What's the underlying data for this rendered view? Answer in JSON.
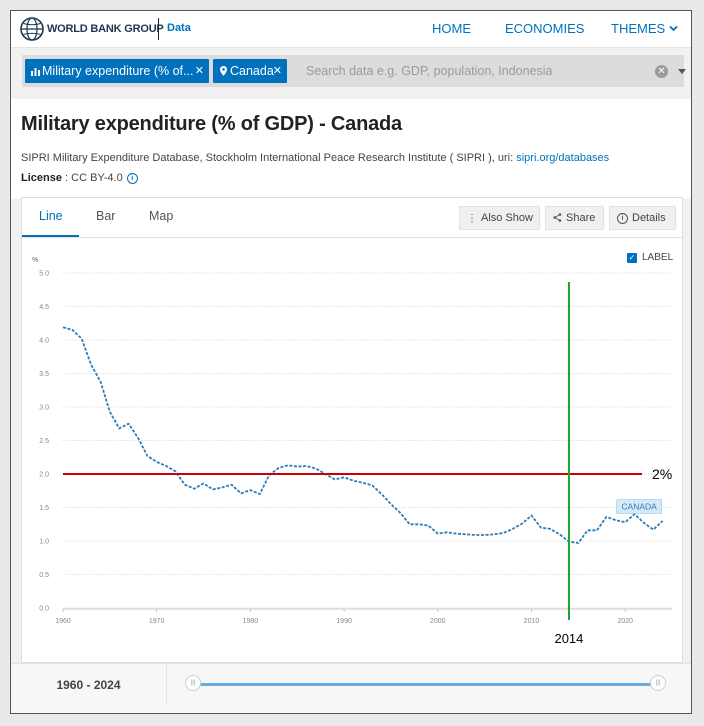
{
  "header": {
    "brand": "WORLD BANK GROUP",
    "section": "Data",
    "nav": [
      "HOME",
      "ECONOMIES",
      "THEMES"
    ]
  },
  "search": {
    "indicator_chip": "Military expenditure (% of...",
    "country_chip": "Canada",
    "placeholder": "Search data e.g. GDP, population, Indonesia"
  },
  "page": {
    "title": "Military expenditure (% of GDP) - Canada",
    "source_text": "SIPRI Military Expenditure Database, Stockholm International Peace Research Institute ( SIPRI ), uri: ",
    "source_link": "sipri.org/databases",
    "license_label": "License",
    "license_value": " : CC BY-4.0"
  },
  "tabs": [
    "Line",
    "Bar",
    "Map"
  ],
  "tools": [
    "Also Show",
    "Share",
    "Details"
  ],
  "label_toggle": "LABEL",
  "range": {
    "start": "1960",
    "end": "2024"
  },
  "colors": {
    "accent": "#0071bc",
    "series": "#2b7bb9",
    "threshold": "#cc0000",
    "marker": "#1aa32e"
  },
  "chart_data": {
    "type": "line",
    "title": "Military expenditure (% of GDP) - Canada",
    "ylabel": "%",
    "ylim": [
      0,
      5
    ],
    "yticks": [
      "0.0",
      "0.5",
      "1.0",
      "1.5",
      "2.0",
      "2.5",
      "3.0",
      "3.5",
      "4.0",
      "4.5",
      "5.0"
    ],
    "xlim": [
      1960,
      2025
    ],
    "xticks": [
      "1960",
      "1970",
      "1980",
      "1990",
      "2000",
      "2010",
      "2020"
    ],
    "series": [
      {
        "name": "CANADA",
        "x": [
          1960,
          1961,
          1962,
          1963,
          1964,
          1965,
          1966,
          1967,
          1968,
          1969,
          1970,
          1971,
          1972,
          1973,
          1974,
          1975,
          1976,
          1977,
          1978,
          1979,
          1980,
          1981,
          1982,
          1983,
          1984,
          1985,
          1986,
          1987,
          1988,
          1989,
          1990,
          1991,
          1992,
          1993,
          1994,
          1995,
          1996,
          1997,
          1998,
          1999,
          2000,
          2001,
          2002,
          2003,
          2004,
          2005,
          2006,
          2007,
          2008,
          2009,
          2010,
          2011,
          2012,
          2013,
          2014,
          2015,
          2016,
          2017,
          2018,
          2019,
          2020,
          2021,
          2022,
          2023,
          2024
        ],
        "values": [
          4.19,
          4.15,
          4.02,
          3.63,
          3.38,
          2.93,
          2.68,
          2.75,
          2.54,
          2.27,
          2.18,
          2.12,
          2.04,
          1.84,
          1.78,
          1.86,
          1.77,
          1.8,
          1.84,
          1.71,
          1.76,
          1.7,
          1.98,
          2.09,
          2.13,
          2.11,
          2.12,
          2.08,
          2.0,
          1.92,
          1.95,
          1.9,
          1.87,
          1.83,
          1.7,
          1.55,
          1.42,
          1.25,
          1.25,
          1.23,
          1.11,
          1.13,
          1.11,
          1.1,
          1.09,
          1.09,
          1.1,
          1.12,
          1.18,
          1.26,
          1.38,
          1.2,
          1.18,
          1.1,
          0.99,
          0.97,
          1.16,
          1.16,
          1.36,
          1.31,
          1.28,
          1.4,
          1.27,
          1.17,
          1.3
        ]
      }
    ],
    "annotations": [
      {
        "type": "hline",
        "y": 2.0,
        "label": "2%"
      },
      {
        "type": "vline",
        "x": 2014,
        "label": "2014"
      }
    ],
    "series_label": "CANADA"
  }
}
